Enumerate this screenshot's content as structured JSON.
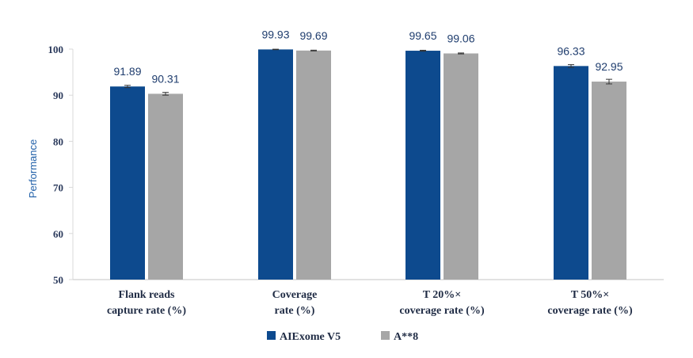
{
  "chart_data": {
    "type": "bar",
    "title": "",
    "xlabel": "",
    "ylabel": "Performance",
    "ylim": [
      50,
      100
    ],
    "yticks": [
      50,
      60,
      70,
      80,
      90,
      100
    ],
    "grid": false,
    "legend_position": "bottom-center",
    "categories": [
      [
        "Flank reads",
        "capture rate (%)"
      ],
      [
        "Coverage",
        "rate (%)"
      ],
      [
        "T 20%×",
        "coverage rate (%)"
      ],
      [
        "T 50%×",
        "coverage rate (%)"
      ]
    ],
    "series": [
      {
        "name": "AIExome V5",
        "color": "#0d4a8e",
        "values": [
          91.89,
          99.93,
          99.65,
          96.33
        ],
        "labels": [
          "91.89",
          "99.93",
          "99.65",
          "96.33"
        ],
        "errors": [
          0.25,
          0.05,
          0.1,
          0.3
        ]
      },
      {
        "name": "A**8",
        "color": "#a6a6a6",
        "values": [
          90.31,
          99.69,
          99.06,
          92.95
        ],
        "labels": [
          "90.31",
          "99.69",
          "99.06",
          "92.95"
        ],
        "errors": [
          0.3,
          0.08,
          0.1,
          0.5
        ]
      }
    ]
  }
}
